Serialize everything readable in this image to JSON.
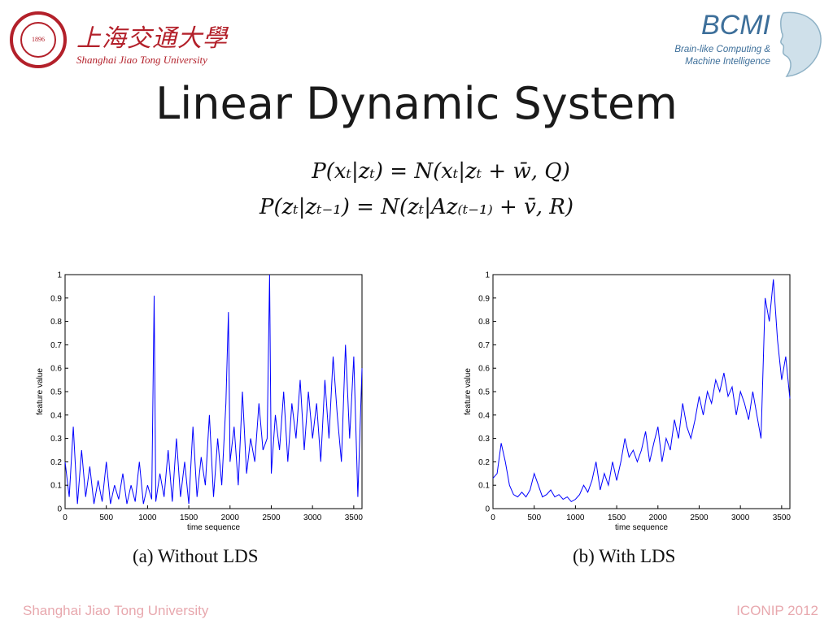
{
  "header": {
    "university_cn": "上海交通大學",
    "university_en": "Shanghai Jiao Tong University",
    "seal_year": "1896",
    "lab_name": "BCMI",
    "lab_subtitle_line1": "Brain-like Computing &",
    "lab_subtitle_line2": "Machine Intelligence"
  },
  "slide": {
    "title": "Linear Dynamic System",
    "equation1": "P(xₜ|zₜ) = N(xₜ|zₜ + w̄, Q)",
    "equation2": "P(zₜ|zₜ₋₁) = N(zₜ|Az₍ₜ₋₁₎ + v̄, R)"
  },
  "footer": {
    "left": "Shanghai Jiao Tong University",
    "right": "ICONIP 2012"
  },
  "colors": {
    "series": "#0000ff",
    "accent_red": "#b3202a",
    "footer_pink": "#e8a8ae",
    "lab_blue": "#3d6f9a"
  },
  "chart_data": [
    {
      "type": "line",
      "caption": "(a) Without LDS",
      "xlabel": "time sequence",
      "ylabel": "feature value",
      "xlim": [
        0,
        3600
      ],
      "ylim": [
        0,
        1
      ],
      "xticks": [
        "0",
        "500",
        "1000",
        "1500",
        "2000",
        "2500",
        "3000",
        "3500"
      ],
      "yticks": [
        "0",
        "0.1",
        "0.2",
        "0.3",
        "0.4",
        "0.5",
        "0.6",
        "0.7",
        "0.8",
        "0.9",
        "1"
      ],
      "grid": false,
      "series": [
        {
          "x": [
            0,
            50,
            100,
            150,
            200,
            250,
            300,
            350,
            400,
            450,
            500,
            550,
            600,
            650,
            700,
            750,
            800,
            850,
            900,
            950,
            1000,
            1050,
            1080,
            1100,
            1150,
            1200,
            1250,
            1300,
            1350,
            1400,
            1450,
            1500,
            1550,
            1600,
            1650,
            1700,
            1750,
            1800,
            1850,
            1900,
            1950,
            1980,
            2000,
            2050,
            2100,
            2150,
            2200,
            2250,
            2300,
            2350,
            2400,
            2450,
            2480,
            2500,
            2550,
            2600,
            2650,
            2700,
            2750,
            2800,
            2850,
            2900,
            2950,
            3000,
            3050,
            3100,
            3150,
            3200,
            3250,
            3300,
            3350,
            3400,
            3450,
            3500,
            3550,
            3600
          ],
          "y": [
            0.2,
            0.05,
            0.35,
            0.02,
            0.25,
            0.05,
            0.18,
            0.02,
            0.12,
            0.03,
            0.2,
            0.02,
            0.1,
            0.04,
            0.15,
            0.02,
            0.1,
            0.03,
            0.2,
            0.02,
            0.1,
            0.04,
            0.91,
            0.03,
            0.15,
            0.05,
            0.25,
            0.03,
            0.3,
            0.05,
            0.2,
            0.02,
            0.35,
            0.05,
            0.22,
            0.1,
            0.4,
            0.05,
            0.3,
            0.1,
            0.45,
            0.84,
            0.2,
            0.35,
            0.1,
            0.5,
            0.15,
            0.3,
            0.2,
            0.45,
            0.25,
            0.3,
            1.0,
            0.15,
            0.4,
            0.25,
            0.5,
            0.2,
            0.45,
            0.3,
            0.55,
            0.25,
            0.5,
            0.3,
            0.45,
            0.2,
            0.55,
            0.3,
            0.65,
            0.4,
            0.2,
            0.7,
            0.3,
            0.65,
            0.05,
            0.6
          ]
        }
      ]
    },
    {
      "type": "line",
      "caption": "(b) With LDS",
      "xlabel": "time sequence",
      "ylabel": "feature value",
      "xlim": [
        0,
        3600
      ],
      "ylim": [
        0,
        1
      ],
      "xticks": [
        "0",
        "500",
        "1000",
        "1500",
        "2000",
        "2500",
        "3000",
        "3500"
      ],
      "yticks": [
        "0",
        "0.1",
        "0.2",
        "0.3",
        "0.4",
        "0.5",
        "0.6",
        "0.7",
        "0.8",
        "0.9",
        "1"
      ],
      "grid": false,
      "series": [
        {
          "x": [
            0,
            50,
            100,
            150,
            200,
            250,
            300,
            350,
            400,
            450,
            500,
            550,
            600,
            650,
            700,
            750,
            800,
            850,
            900,
            950,
            1000,
            1050,
            1100,
            1150,
            1200,
            1250,
            1300,
            1350,
            1400,
            1450,
            1500,
            1550,
            1600,
            1650,
            1700,
            1750,
            1800,
            1850,
            1900,
            1950,
            2000,
            2050,
            2100,
            2150,
            2200,
            2250,
            2300,
            2350,
            2400,
            2450,
            2500,
            2550,
            2600,
            2650,
            2700,
            2750,
            2800,
            2850,
            2900,
            2950,
            3000,
            3050,
            3100,
            3150,
            3200,
            3250,
            3300,
            3350,
            3400,
            3450,
            3500,
            3550,
            3600
          ],
          "y": [
            0.13,
            0.15,
            0.28,
            0.2,
            0.1,
            0.06,
            0.05,
            0.07,
            0.05,
            0.08,
            0.15,
            0.1,
            0.05,
            0.06,
            0.08,
            0.05,
            0.06,
            0.04,
            0.05,
            0.03,
            0.04,
            0.06,
            0.1,
            0.07,
            0.12,
            0.2,
            0.08,
            0.15,
            0.1,
            0.2,
            0.12,
            0.2,
            0.3,
            0.22,
            0.25,
            0.2,
            0.25,
            0.33,
            0.2,
            0.28,
            0.35,
            0.2,
            0.3,
            0.25,
            0.38,
            0.3,
            0.45,
            0.35,
            0.3,
            0.38,
            0.48,
            0.4,
            0.5,
            0.45,
            0.55,
            0.5,
            0.58,
            0.48,
            0.52,
            0.4,
            0.5,
            0.45,
            0.38,
            0.5,
            0.4,
            0.3,
            0.9,
            0.8,
            0.98,
            0.72,
            0.55,
            0.65,
            0.47
          ]
        }
      ]
    }
  ]
}
